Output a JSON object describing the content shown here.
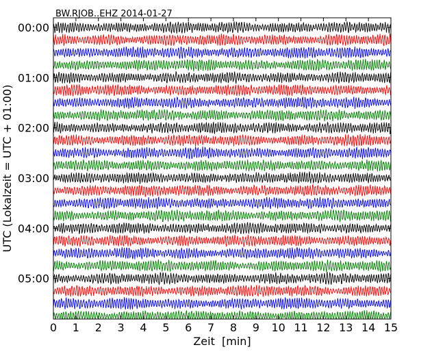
{
  "chart_data": {
    "type": "line",
    "title": "BW.RJOB..EHZ 2014-01-27",
    "xlabel": "Zeit  [min]",
    "ylabel": "UTC (Lokalzeit = UTC + 01:00)",
    "xlim": [
      0,
      15
    ],
    "xticks": [
      "0",
      "1",
      "2",
      "3",
      "4",
      "5",
      "6",
      "7",
      "8",
      "9",
      "10",
      "11",
      "12",
      "13",
      "14",
      "15"
    ],
    "ylim_hours": [
      0,
      6
    ],
    "yticks": [
      "00:00",
      "01:00",
      "02:00",
      "03:00",
      "04:00",
      "05:00"
    ],
    "rows_per_hour": 4,
    "minutes_per_row": 15,
    "trace_colors": [
      "#000000",
      "#ff0000",
      "#0000ff",
      "#008000"
    ],
    "grid": false,
    "legend": "none"
  }
}
